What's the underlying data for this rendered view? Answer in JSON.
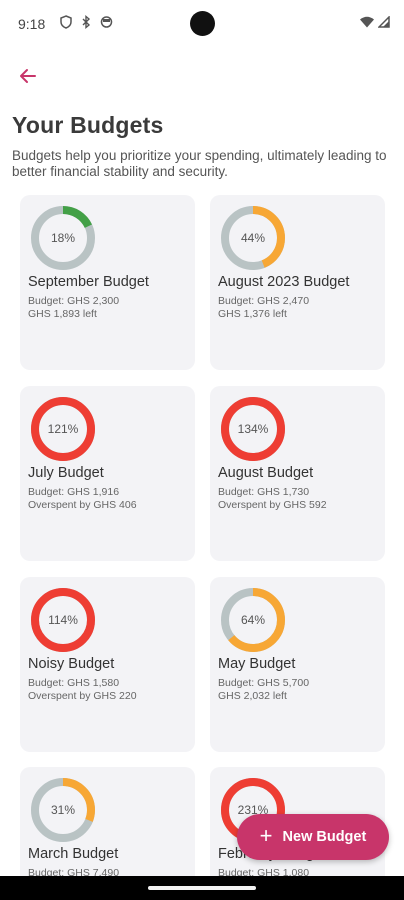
{
  "status_bar": {
    "time": "9:18",
    "left_icons": [
      "vpn-shield-icon",
      "bluetooth-icon",
      "face-icon"
    ],
    "right_icons": [
      "wifi-icon",
      "signal-icon"
    ]
  },
  "header": {
    "back_icon": "arrow-left-icon",
    "title": "Your Budgets",
    "subtitle": "Budgets help you prioritize your spending, ultimately leading to better financial stability and security."
  },
  "colors": {
    "accent": "#c8356a",
    "ring_track": "#b9c3c4",
    "ring_green": "#43a047",
    "ring_orange": "#f7a735",
    "ring_red": "#ee3d33"
  },
  "budgets": [
    {
      "name": "September Budget",
      "percent_label": "18%",
      "percent": 18,
      "ring_color": "green",
      "line1": "Budget: GHS 2,300",
      "line2": "GHS 1,893 left"
    },
    {
      "name": "August 2023 Budget",
      "percent_label": "44%",
      "percent": 44,
      "ring_color": "orange",
      "line1": "Budget: GHS 2,470",
      "line2": "GHS 1,376 left"
    },
    {
      "name": "July Budget",
      "percent_label": "121%",
      "percent": 121,
      "ring_color": "red",
      "line1": "Budget: GHS 1,916",
      "line2": "Overspent by GHS 406"
    },
    {
      "name": "August Budget",
      "percent_label": "134%",
      "percent": 134,
      "ring_color": "red",
      "line1": "Budget: GHS 1,730",
      "line2": "Overspent by GHS 592"
    },
    {
      "name": "Noisy Budget",
      "percent_label": "114%",
      "percent": 114,
      "ring_color": "red",
      "line1": "Budget: GHS 1,580",
      "line2": "Overspent by GHS 220"
    },
    {
      "name": "May Budget",
      "percent_label": "64%",
      "percent": 64,
      "ring_color": "orange",
      "line1": "Budget: GHS 5,700",
      "line2": "GHS 2,032 left"
    },
    {
      "name": "March Budget",
      "percent_label": "31%",
      "percent": 31,
      "ring_color": "orange",
      "line1": "Budget: GHS 7,490",
      "line2": ""
    },
    {
      "name": "February Budget",
      "percent_label": "231%",
      "percent": 231,
      "ring_color": "red",
      "line1": "Budget: GHS 1,080",
      "line2": ""
    }
  ],
  "fab": {
    "icon": "plus-icon",
    "label": "New Budget"
  }
}
